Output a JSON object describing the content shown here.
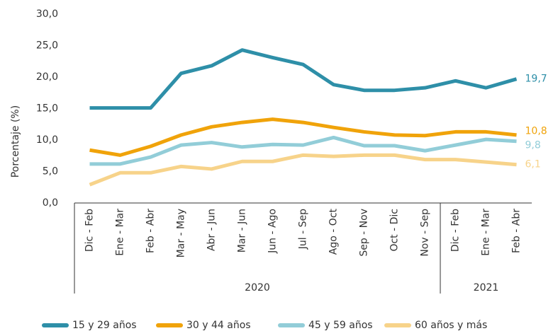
{
  "chart_data": {
    "type": "line",
    "ylabel": "Porcentaje (%)",
    "category_groups": [
      {
        "label": "2020",
        "categories": [
          "Dic - Feb",
          "Ene - Mar",
          "Feb - Abr",
          "Mar - May",
          "Abr - Jun",
          "Mar - Jun",
          "Jun - Ago",
          "Jul - Sep",
          "Ago - Oct",
          "Sep - Nov",
          "Oct - Dic",
          "Nov - Sep"
        ]
      },
      {
        "label": "2021",
        "categories": [
          "Dic - Feb",
          "Ene - Mar",
          "Feb - Abr"
        ]
      }
    ],
    "ylim": [
      0,
      30
    ],
    "yticks": [
      {
        "value": 0,
        "label": "0,0"
      },
      {
        "value": 5,
        "label": "5,0"
      },
      {
        "value": 10,
        "label": "10,0"
      },
      {
        "value": 15,
        "label": "15,0"
      },
      {
        "value": 20,
        "label": "20,0"
      },
      {
        "value": 25,
        "label": "25,0"
      },
      {
        "value": 30,
        "label": "30,0"
      }
    ],
    "series": [
      {
        "name": "15 y 29 años",
        "color": "#2e8fa8",
        "values": [
          15.1,
          15.1,
          15.1,
          20.6,
          21.8,
          24.3,
          23.1,
          22.0,
          18.8,
          17.9,
          17.9,
          18.3,
          19.4,
          18.3,
          19.7
        ],
        "value_labels": [
          null,
          null,
          null,
          null,
          null,
          null,
          null,
          null,
          null,
          null,
          null,
          null,
          null,
          null,
          "19,7"
        ]
      },
      {
        "name": "30 y 44 años",
        "color": "#f0a30a",
        "values": [
          8.4,
          7.6,
          9.0,
          10.8,
          12.1,
          12.8,
          13.3,
          12.8,
          12.0,
          11.3,
          10.8,
          10.7,
          11.3,
          11.3,
          10.8
        ],
        "value_labels": [
          null,
          null,
          null,
          null,
          null,
          null,
          null,
          null,
          null,
          null,
          null,
          null,
          null,
          null,
          "10,8"
        ]
      },
      {
        "name": "45 y 59 años",
        "color": "#92cdd8",
        "values": [
          6.2,
          6.2,
          7.3,
          9.2,
          9.6,
          8.9,
          9.3,
          9.2,
          10.4,
          9.1,
          9.1,
          8.3,
          9.2,
          10.1,
          9.8
        ],
        "value_labels": [
          null,
          null,
          null,
          null,
          null,
          null,
          null,
          null,
          null,
          null,
          null,
          null,
          null,
          null,
          "9,8"
        ]
      },
      {
        "name": "60 años y más",
        "color": "#f7d38a",
        "values": [
          2.9,
          4.8,
          4.8,
          5.8,
          5.4,
          6.6,
          6.6,
          7.6,
          7.4,
          7.6,
          7.6,
          6.9,
          6.9,
          6.5,
          6.1
        ],
        "value_labels": [
          null,
          null,
          null,
          null,
          null,
          null,
          null,
          null,
          null,
          null,
          null,
          null,
          null,
          null,
          "6,1"
        ]
      }
    ],
    "legend": "bottom"
  }
}
